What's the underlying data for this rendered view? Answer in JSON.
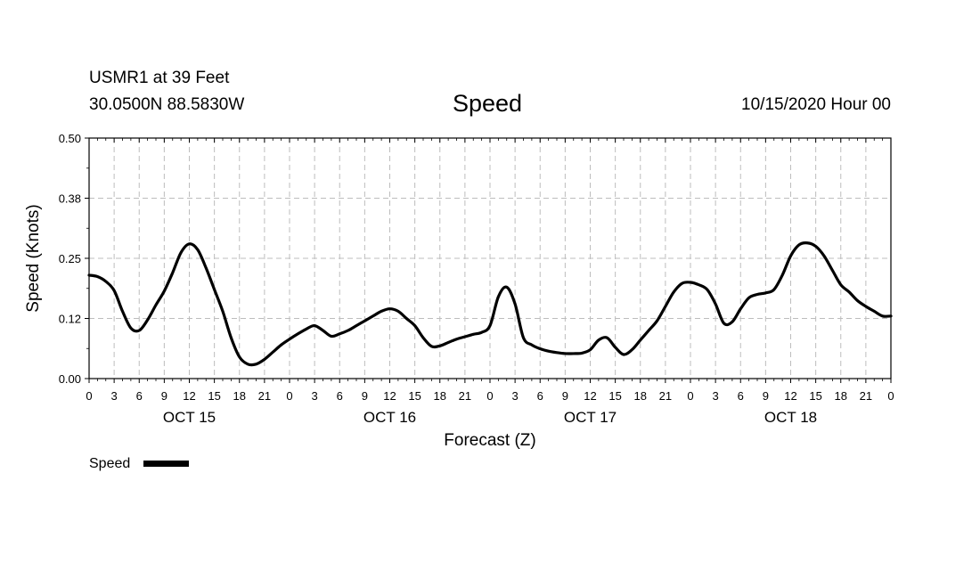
{
  "header": {
    "station": "USMR1 at 39 Feet",
    "coordinates": "30.0500N 88.5830W",
    "title": "Speed",
    "run_time": "10/15/2020 Hour 00"
  },
  "legend": {
    "label": "Speed",
    "color": "#000000"
  },
  "chart_data": {
    "type": "line",
    "title": "Speed",
    "xlabel": "Forecast (Z)",
    "ylabel": "Speed (Knots)",
    "ylim": [
      0,
      0.5
    ],
    "yticks": [
      "0.00",
      "0.12",
      "0.25",
      "0.38",
      "0.50"
    ],
    "xlim": [
      0,
      96
    ],
    "xticks": [
      "0",
      "3",
      "6",
      "9",
      "12",
      "15",
      "18",
      "21",
      "0",
      "3",
      "6",
      "9",
      "12",
      "15",
      "18",
      "21",
      "0",
      "3",
      "6",
      "9",
      "12",
      "15",
      "18",
      "21",
      "0",
      "3",
      "6",
      "9",
      "12",
      "15",
      "18",
      "21",
      "0"
    ],
    "day_labels": [
      {
        "label": "OCT 15",
        "hour": 12
      },
      {
        "label": "OCT 16",
        "hour": 36
      },
      {
        "label": "OCT 17",
        "hour": 60
      },
      {
        "label": "OCT 18",
        "hour": 84
      }
    ],
    "grid": true,
    "legend_position": "bottom-left",
    "series": [
      {
        "name": "Speed",
        "color": "#000000",
        "x": [
          0,
          1,
          2,
          3,
          4,
          5,
          6,
          7,
          8,
          9,
          10,
          11,
          12,
          13,
          14,
          15,
          16,
          17,
          18,
          19,
          20,
          21,
          22,
          23,
          24,
          25,
          26,
          27,
          28,
          29,
          30,
          31,
          32,
          33,
          34,
          35,
          36,
          37,
          38,
          39,
          40,
          41,
          42,
          43,
          44,
          45,
          46,
          47,
          48,
          49,
          50,
          51,
          52,
          53,
          54,
          55,
          56,
          57,
          58,
          59,
          60,
          61,
          62,
          63,
          64,
          65,
          66,
          67,
          68,
          69,
          70,
          71,
          72,
          73,
          74,
          75,
          76,
          77,
          78,
          79,
          80,
          81,
          82,
          83,
          84,
          85,
          86,
          87,
          88,
          89,
          90,
          91,
          92,
          93,
          94,
          95,
          96
        ],
        "y": [
          0.215,
          0.212,
          0.202,
          0.183,
          0.14,
          0.105,
          0.1,
          0.122,
          0.153,
          0.182,
          0.22,
          0.262,
          0.28,
          0.268,
          0.23,
          0.185,
          0.14,
          0.085,
          0.045,
          0.03,
          0.03,
          0.04,
          0.055,
          0.07,
          0.082,
          0.093,
          0.103,
          0.11,
          0.1,
          0.088,
          0.093,
          0.1,
          0.11,
          0.12,
          0.13,
          0.14,
          0.145,
          0.14,
          0.125,
          0.11,
          0.085,
          0.067,
          0.068,
          0.075,
          0.082,
          0.087,
          0.092,
          0.096,
          0.11,
          0.17,
          0.19,
          0.155,
          0.085,
          0.07,
          0.062,
          0.057,
          0.054,
          0.052,
          0.052,
          0.053,
          0.06,
          0.08,
          0.085,
          0.065,
          0.05,
          0.06,
          0.08,
          0.1,
          0.12,
          0.15,
          0.18,
          0.198,
          0.2,
          0.195,
          0.185,
          0.155,
          0.115,
          0.118,
          0.145,
          0.168,
          0.175,
          0.178,
          0.185,
          0.215,
          0.255,
          0.278,
          0.282,
          0.275,
          0.255,
          0.225,
          0.195,
          0.18,
          0.162,
          0.15,
          0.14,
          0.13,
          0.13
        ]
      }
    ]
  }
}
